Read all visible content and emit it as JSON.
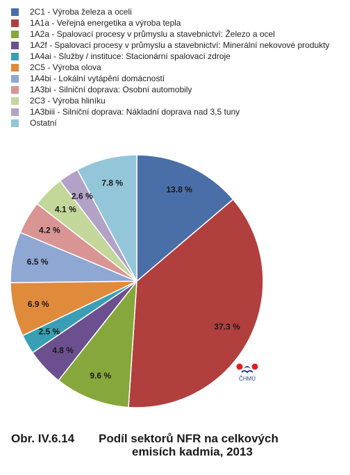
{
  "chart_data": {
    "type": "pie",
    "categories": [
      "2C1 - Výroba železa a oceli",
      "1A1a - Veřejná energetika a výroba tepla",
      "1A2a - Spalovací procesy v průmyslu a stavebnictví: Železo a ocel",
      "1A2f - Spalovací procesy v průmyslu a stavebnictví: Minerální nekovové produkty",
      "1A4ai - Služby / instituce: Stacionární spalovací zdroje",
      "2C5 - Výroba olova",
      "1A4bi - Lokální vytápění domácností",
      "1A3bi - Silniční doprava: Osobní automobily",
      "2C3 - Výroba hliníku",
      "1A3biii - Silniční doprava: Nákladní doprava nad 3,5 tuny",
      "Ostatní"
    ],
    "values": [
      13.8,
      37.3,
      9.6,
      4.8,
      2.5,
      6.9,
      6.5,
      4.2,
      4.1,
      2.6,
      7.8
    ],
    "labels": [
      "13.8 %",
      "37.3 %",
      "9.6 %",
      "4.8 %",
      "2.5 %",
      "6.9 %",
      "6.5 %",
      "4.2 %",
      "4.1 %",
      "2.6 %",
      "7.8 %"
    ],
    "colors": [
      "#4a6ea8",
      "#b03f3d",
      "#86a73c",
      "#6c4f8f",
      "#3a9fb5",
      "#e08a3c",
      "#8ea7d3",
      "#d99594",
      "#c4d79b",
      "#b3a2c8",
      "#93c6d9"
    ],
    "legend_position": "top"
  },
  "logo": {
    "text": "ČHMÚ"
  },
  "caption": {
    "number": "Obr. IV.6.14",
    "line1": "Podíl sektorů NFR na celkových",
    "line2": "emisích kadmia, 2013"
  }
}
